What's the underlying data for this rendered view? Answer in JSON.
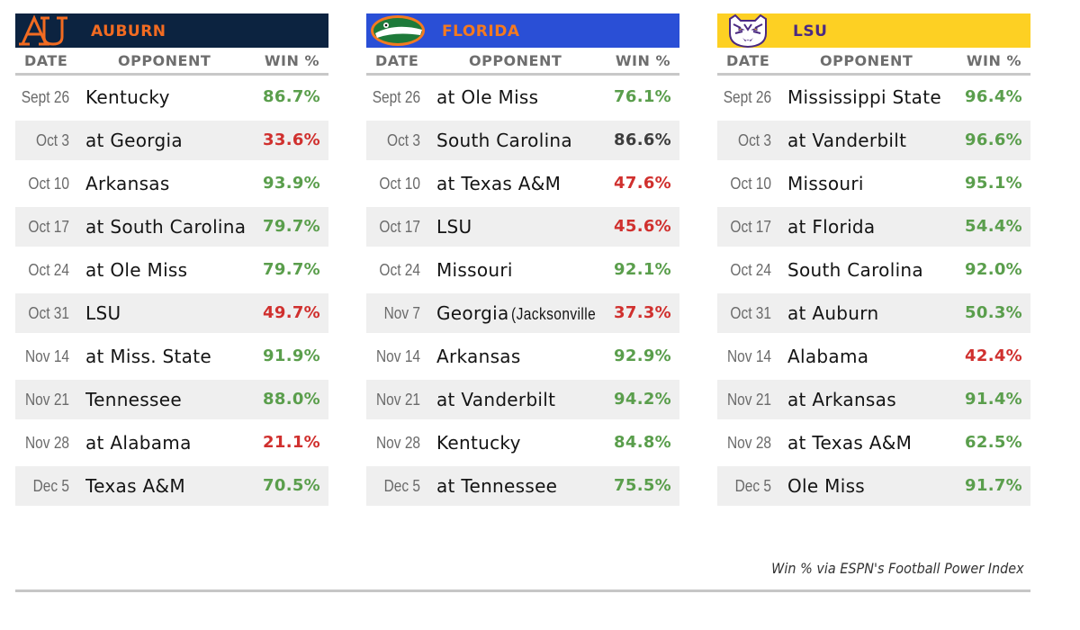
{
  "colors": {
    "win_green": "#5a9e4c",
    "win_red": "#d0302e",
    "win_neutral": "#3d3d3d"
  },
  "column_headers": {
    "date": "DATE",
    "opponent": "OPPONENT",
    "win": "WIN %"
  },
  "chart_data": {
    "type": "table",
    "columns": [
      "DATE",
      "OPPONENT",
      "WIN %"
    ],
    "teams": [
      {
        "name": "AUBURN",
        "header_color": "#0c2340",
        "name_color": "#f26b21",
        "logo": "auburn-au-logo",
        "games": [
          {
            "date": "Sept 26",
            "opponent": "Kentucky",
            "win": "86.7%",
            "color": "#5a9e4c"
          },
          {
            "date": "Oct 3",
            "opponent": "at Georgia",
            "win": "33.6%",
            "color": "#d0302e"
          },
          {
            "date": "Oct 10",
            "opponent": "Arkansas",
            "win": "93.9%",
            "color": "#5a9e4c"
          },
          {
            "date": "Oct 17",
            "opponent": "at South Carolina",
            "win": "79.7%",
            "color": "#5a9e4c"
          },
          {
            "date": "Oct 24",
            "opponent": "at Ole Miss",
            "win": "79.7%",
            "color": "#5a9e4c"
          },
          {
            "date": "Oct 31",
            "opponent": "LSU",
            "win": "49.7%",
            "color": "#d0302e"
          },
          {
            "date": "Nov 14",
            "opponent": "at Miss. State",
            "win": "91.9%",
            "color": "#5a9e4c"
          },
          {
            "date": "Nov 21",
            "opponent": "Tennessee",
            "win": "88.0%",
            "color": "#5a9e4c"
          },
          {
            "date": "Nov 28",
            "opponent": "at Alabama",
            "win": "21.1%",
            "color": "#d0302e"
          },
          {
            "date": "Dec 5",
            "opponent": "Texas A&M",
            "win": "70.5%",
            "color": "#5a9e4c"
          }
        ]
      },
      {
        "name": "FLORIDA",
        "header_color": "#2a4fd6",
        "name_color": "#f47a20",
        "logo": "florida-gator-logo",
        "games": [
          {
            "date": "Sept 26",
            "opponent": "at Ole Miss",
            "win": "76.1%",
            "color": "#5a9e4c"
          },
          {
            "date": "Oct 3",
            "opponent": "South Carolina",
            "win": "86.6%",
            "color": "#3d3d3d"
          },
          {
            "date": "Oct 10",
            "opponent": "at Texas A&M",
            "win": "47.6%",
            "color": "#d0302e"
          },
          {
            "date": "Oct 17",
            "opponent": "LSU",
            "win": "45.6%",
            "color": "#d0302e"
          },
          {
            "date": "Oct 24",
            "opponent": "Missouri",
            "win": "92.1%",
            "color": "#5a9e4c"
          },
          {
            "date": "Nov 7",
            "opponent": "Georgia",
            "note": "(Jacksonville",
            "win": "37.3%",
            "color": "#d0302e"
          },
          {
            "date": "Nov 14",
            "opponent": "Arkansas",
            "win": "92.9%",
            "color": "#5a9e4c"
          },
          {
            "date": "Nov 21",
            "opponent": "at Vanderbilt",
            "win": "94.2%",
            "color": "#5a9e4c"
          },
          {
            "date": "Nov 28",
            "opponent": "Kentucky",
            "win": "84.8%",
            "color": "#5a9e4c"
          },
          {
            "date": "Dec 5",
            "opponent": "at Tennessee",
            "win": "75.5%",
            "color": "#5a9e4c"
          }
        ]
      },
      {
        "name": "LSU",
        "header_color": "#fdd023",
        "name_color": "#4b2a82",
        "logo": "lsu-tiger-logo",
        "games": [
          {
            "date": "Sept 26",
            "opponent": "Mississippi State",
            "win": "96.4%",
            "color": "#5a9e4c"
          },
          {
            "date": "Oct 3",
            "opponent": "at Vanderbilt",
            "win": "96.6%",
            "color": "#5a9e4c"
          },
          {
            "date": "Oct 10",
            "opponent": "Missouri",
            "win": "95.1%",
            "color": "#5a9e4c"
          },
          {
            "date": "Oct 17",
            "opponent": "at Florida",
            "win": "54.4%",
            "color": "#5a9e4c"
          },
          {
            "date": "Oct 24",
            "opponent": "South Carolina",
            "win": "92.0%",
            "color": "#5a9e4c"
          },
          {
            "date": "Oct 31",
            "opponent": "at Auburn",
            "win": "50.3%",
            "color": "#5a9e4c"
          },
          {
            "date": "Nov 14",
            "opponent": "Alabama",
            "win": "42.4%",
            "color": "#d0302e"
          },
          {
            "date": "Nov 21",
            "opponent": "at Arkansas",
            "win": "91.4%",
            "color": "#5a9e4c"
          },
          {
            "date": "Nov 28",
            "opponent": "at Texas A&M",
            "win": "62.5%",
            "color": "#5a9e4c"
          },
          {
            "date": "Dec 5",
            "opponent": "Ole Miss",
            "win": "91.7%",
            "color": "#5a9e4c"
          }
        ]
      }
    ]
  },
  "footer": {
    "source": "Win % via ESPN's Football Power Index"
  }
}
